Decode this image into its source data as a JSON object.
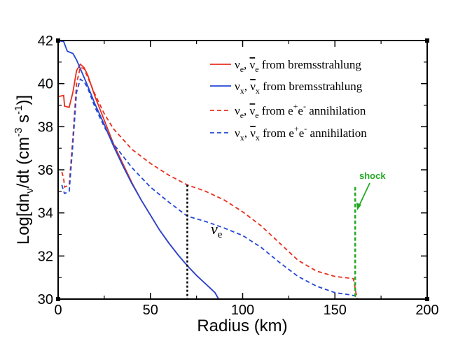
{
  "chart_data": {
    "type": "line",
    "title": "",
    "xlabel": "Radius (km)",
    "ylabel": "Log[dn_ν/dt (cm^-3 s^-1)]",
    "xlim": [
      0,
      200
    ],
    "ylim": [
      30,
      42
    ],
    "x_ticks": [
      0,
      50,
      100,
      150,
      200
    ],
    "y_ticks": [
      30,
      32,
      34,
      36,
      38,
      40,
      42
    ],
    "x_tick_labels": [
      "0",
      "50",
      "100",
      "150",
      "200"
    ],
    "y_tick_labels": [
      "30",
      "32",
      "34",
      "36",
      "38",
      "40",
      "42"
    ],
    "legend_position": "top-right",
    "series": [
      {
        "name": "νe, ν̄e from bremsstrahlung",
        "legend_main": "ν",
        "legend_sub1": "e",
        "legend_sep": ", ",
        "legend_bar": "ν",
        "legend_sub2": "e",
        "legend_tail": " from bremsstrahlung",
        "color": "#e8301e",
        "dash": "solid",
        "x": [
          0,
          3,
          3.5,
          6,
          8,
          10,
          12,
          14,
          16,
          20,
          25,
          30,
          35,
          40,
          45,
          50,
          55,
          60,
          65,
          70,
          75,
          80,
          85,
          87
        ],
        "y": [
          39.4,
          39.45,
          38.95,
          38.9,
          39.6,
          40.6,
          40.9,
          40.75,
          40.4,
          39.4,
          38.3,
          37.2,
          36.3,
          35.4,
          34.6,
          33.9,
          33.2,
          32.6,
          32.05,
          31.55,
          31.1,
          30.7,
          30.3,
          30.0
        ]
      },
      {
        "name": "νx, ν̄x from bremsstrahlung",
        "legend_main": "ν",
        "legend_sub1": "x",
        "legend_sep": ", ",
        "legend_bar": "ν",
        "legend_sub2": "x",
        "legend_tail": " from bremsstrahlung",
        "color": "#2347d6",
        "dash": "solid",
        "x": [
          0,
          3,
          5,
          8,
          10,
          12,
          14,
          16,
          20,
          25,
          30,
          35,
          40,
          45,
          50,
          55,
          60,
          65,
          70,
          75,
          80,
          85,
          87
        ],
        "y": [
          42.0,
          41.95,
          41.5,
          41.4,
          41.1,
          40.7,
          40.3,
          39.9,
          39.05,
          38.1,
          37.1,
          36.2,
          35.35,
          34.6,
          33.9,
          33.2,
          32.6,
          32.05,
          31.55,
          31.1,
          30.7,
          30.3,
          30.0
        ]
      },
      {
        "name": "νe, ν̄e from e+e- annihilation",
        "legend_main": "ν",
        "legend_sub1": "e",
        "legend_sep": ", ",
        "legend_bar": "ν",
        "legend_sub2": "e",
        "legend_tail": " from e",
        "legend_sup1": "+",
        "legend_mid": "e",
        "legend_sup2": "-",
        "legend_end": " annihilation",
        "color": "#e8301e",
        "dash": "dashed",
        "x": [
          2,
          3,
          3.5,
          6,
          8,
          10,
          12,
          14,
          16,
          20,
          25,
          30,
          40,
          50,
          60,
          70,
          80,
          90,
          100,
          110,
          120,
          130,
          140,
          150,
          160,
          161,
          162
        ],
        "y": [
          35.9,
          35.6,
          35.2,
          35.3,
          37.5,
          40.0,
          40.75,
          40.7,
          40.3,
          39.5,
          38.6,
          37.9,
          36.95,
          36.3,
          35.75,
          35.3,
          35.0,
          34.6,
          34.05,
          33.4,
          32.6,
          31.8,
          31.3,
          31.05,
          30.95,
          30.5,
          30.0
        ]
      },
      {
        "name": "νx, ν̄x from e+e- annihilation",
        "legend_main": "ν",
        "legend_sub1": "x",
        "legend_sep": ", ",
        "legend_bar": "ν",
        "legend_sub2": "x",
        "legend_tail": " from e",
        "legend_sup1": "+",
        "legend_mid": "e",
        "legend_sup2": "-",
        "legend_end": " annihilation",
        "color": "#2347d6",
        "dash": "dashed",
        "x": [
          2,
          3,
          3.5,
          6,
          8,
          10,
          12,
          14,
          16,
          20,
          25,
          30,
          40,
          50,
          60,
          70,
          80,
          90,
          100,
          110,
          120,
          130,
          140,
          150,
          158,
          161,
          162
        ],
        "y": [
          35.3,
          35.0,
          34.9,
          35.0,
          37.2,
          39.6,
          40.2,
          40.1,
          39.8,
          38.9,
          38.0,
          37.2,
          36.1,
          35.2,
          34.5,
          33.85,
          33.6,
          33.3,
          32.95,
          32.4,
          31.7,
          31.05,
          30.6,
          30.3,
          30.2,
          30.15,
          30.0
        ]
      }
    ],
    "annotations": [
      {
        "text": "ν",
        "sub": "e",
        "x": 84,
        "y": 33.5
      },
      {
        "text": "shock",
        "color": "#22aa22"
      }
    ],
    "vlines": [
      {
        "x": 70,
        "y_top": 35.3,
        "color": "#000000",
        "style": "dotted"
      },
      {
        "x": 161,
        "y_top": 35.2,
        "color": "#22aa22",
        "style": "dashed"
      }
    ]
  }
}
